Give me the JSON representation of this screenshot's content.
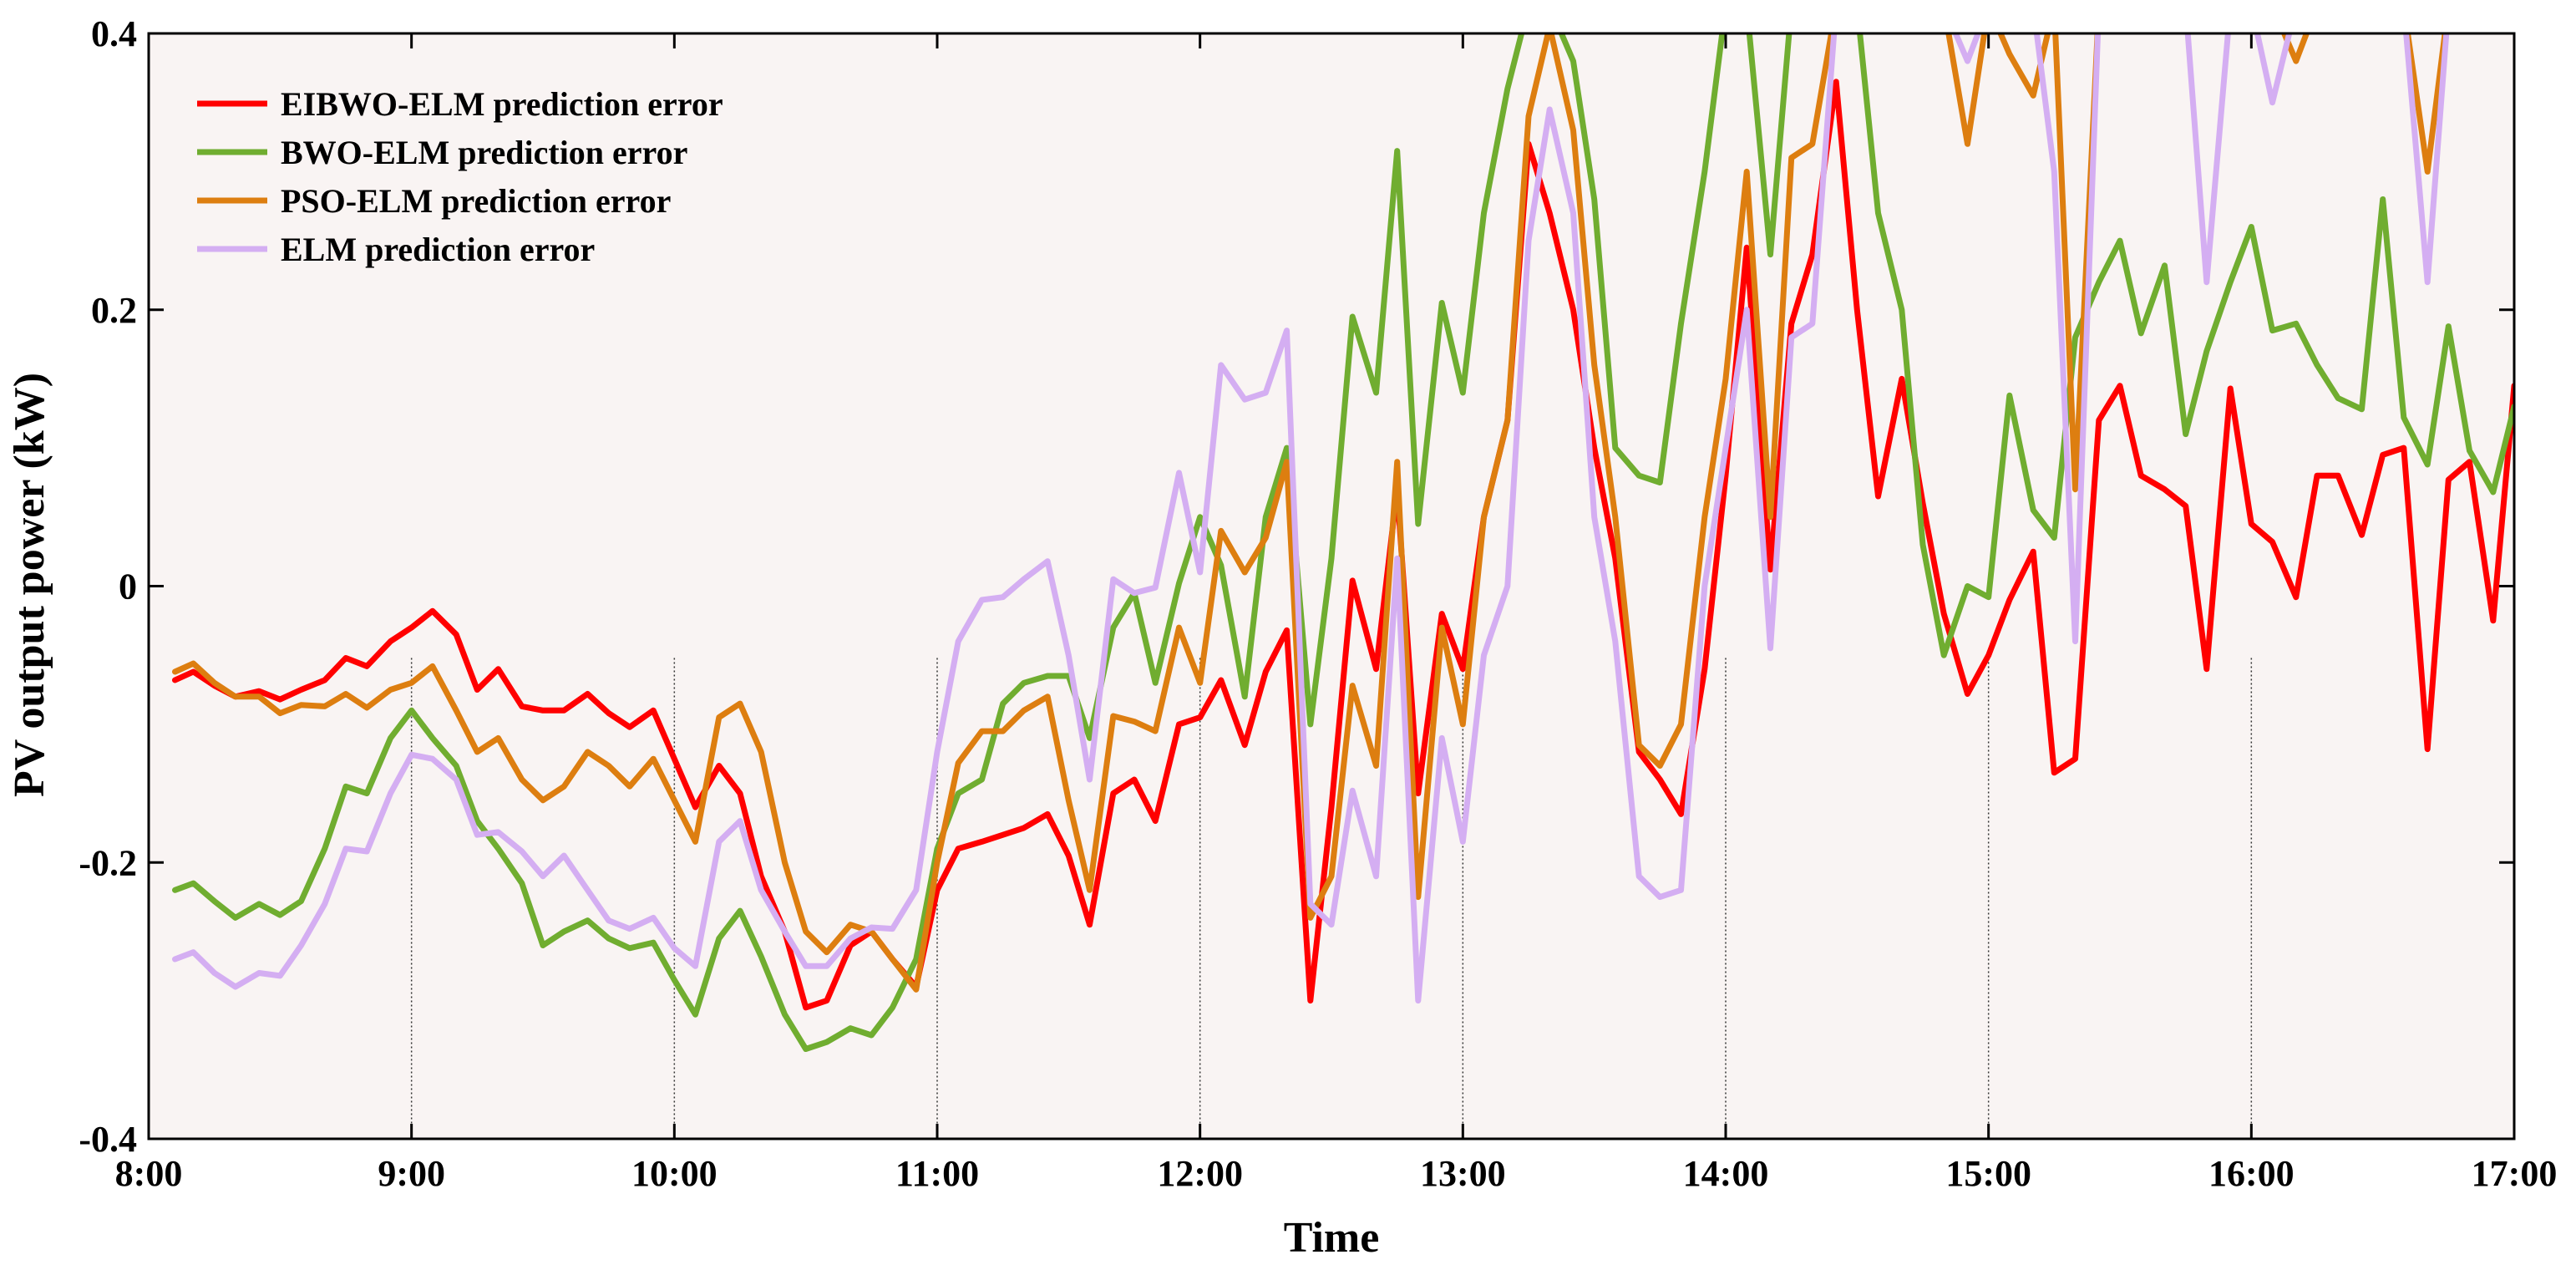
{
  "chart_data": {
    "type": "line",
    "title": "",
    "xlabel": "Time",
    "ylabel": "PV output power (kW)",
    "xlim": [
      8,
      17
    ],
    "ylim": [
      -0.4,
      0.4
    ],
    "grid": "vertical dotted lines at hourly ticks, lower portion of plot",
    "legend": "top-left",
    "plot_background": "#f9f4f3",
    "x_ticks": [
      8,
      9,
      10,
      11,
      12,
      13,
      14,
      15,
      16,
      17
    ],
    "x_tick_labels": [
      "8:00",
      "9:00",
      "10:00",
      "11:00",
      "12:00",
      "13:00",
      "14:00",
      "15:00",
      "16:00",
      "17:00"
    ],
    "y_ticks": [
      -0.4,
      -0.2,
      0,
      0.2,
      0.4
    ],
    "y_tick_labels": [
      "-0.4",
      "-0.2",
      "0",
      "0.2",
      "0.4"
    ],
    "x": [
      8.1,
      8.17,
      8.25,
      8.33,
      8.42,
      8.5,
      8.58,
      8.67,
      8.75,
      8.83,
      8.92,
      9,
      9.08,
      9.17,
      9.25,
      9.33,
      9.42,
      9.5,
      9.58,
      9.67,
      9.75,
      9.83,
      9.92,
      10,
      10.08,
      10.17,
      10.25,
      10.33,
      10.42,
      10.5,
      10.58,
      10.67,
      10.75,
      10.83,
      10.92,
      11,
      11.08,
      11.17,
      11.25,
      11.33,
      11.42,
      11.5,
      11.58,
      11.67,
      11.75,
      11.83,
      11.92,
      12,
      12.08,
      12.17,
      12.25,
      12.33,
      12.42,
      12.5,
      12.58,
      12.67,
      12.75,
      12.83,
      12.92,
      13,
      13.08,
      13.17,
      13.25,
      13.33,
      13.42,
      13.5,
      13.58,
      13.67,
      13.75,
      13.83,
      13.92,
      14,
      14.08,
      14.17,
      14.25,
      14.33,
      14.42,
      14.5,
      14.58,
      14.67,
      14.75,
      14.83,
      14.92,
      15,
      15.08,
      15.17,
      15.25,
      15.33,
      15.42,
      15.5,
      15.58,
      15.67,
      15.75,
      15.83,
      15.92,
      16,
      16.08,
      16.17,
      16.25,
      16.33,
      16.42,
      16.5,
      16.58,
      16.67,
      16.75,
      16.83,
      16.92,
      17
    ],
    "series": [
      {
        "name": "EIBWO-ELM prediction error",
        "color": "#ff0000",
        "values": [
          -0.068,
          -0.062,
          -0.072,
          -0.08,
          -0.076,
          -0.082,
          -0.075,
          -0.068,
          -0.052,
          -0.058,
          -0.04,
          -0.03,
          -0.018,
          -0.035,
          -0.075,
          -0.06,
          -0.087,
          -0.09,
          -0.09,
          -0.078,
          -0.092,
          -0.102,
          -0.09,
          -0.125,
          -0.16,
          -0.13,
          -0.15,
          -0.21,
          -0.25,
          -0.305,
          -0.3,
          -0.26,
          -0.25,
          -0.27,
          -0.29,
          -0.22,
          -0.19,
          -0.185,
          -0.18,
          -0.175,
          -0.165,
          -0.195,
          -0.245,
          -0.15,
          -0.14,
          -0.17,
          -0.1,
          -0.095,
          -0.068,
          -0.115,
          -0.062,
          -0.032,
          -0.3,
          -0.16,
          0.004,
          -0.06,
          0.07,
          -0.15,
          -0.02,
          -0.06,
          0.05,
          0.12,
          0.32,
          0.27,
          0.2,
          0.1,
          0.02,
          -0.12,
          -0.14,
          -0.165,
          -0.06,
          0.08,
          0.245,
          0.012,
          0.19,
          0.24,
          0.365,
          0.2,
          0.065,
          0.15,
          0.06,
          -0.02,
          -0.078,
          -0.05,
          -0.01,
          0.025,
          -0.135,
          -0.125,
          0.12,
          0.145,
          0.08,
          0.07,
          0.058,
          -0.06,
          0.143,
          0.045,
          0.032,
          -0.008,
          0.08,
          0.08,
          0.037,
          0.095,
          0.1,
          -0.118,
          0.077,
          0.09,
          -0.025,
          0.145
        ]
      },
      {
        "name": "BWO-ELM prediction error",
        "color": "#70ad30",
        "values": [
          -0.22,
          -0.215,
          -0.228,
          -0.24,
          -0.23,
          -0.238,
          -0.228,
          -0.19,
          -0.145,
          -0.15,
          -0.11,
          -0.09,
          -0.11,
          -0.13,
          -0.17,
          -0.19,
          -0.215,
          -0.26,
          -0.25,
          -0.242,
          -0.255,
          -0.262,
          -0.258,
          -0.285,
          -0.31,
          -0.255,
          -0.235,
          -0.268,
          -0.31,
          -0.335,
          -0.33,
          -0.32,
          -0.325,
          -0.305,
          -0.27,
          -0.19,
          -0.15,
          -0.14,
          -0.085,
          -0.07,
          -0.065,
          -0.065,
          -0.11,
          -0.03,
          -0.005,
          -0.07,
          0.002,
          0.05,
          0.015,
          -0.08,
          0.05,
          0.1,
          -0.1,
          0.02,
          0.195,
          0.14,
          0.315,
          0.045,
          0.205,
          0.14,
          0.27,
          0.36,
          0.42,
          0.42,
          0.38,
          0.28,
          0.1,
          0.08,
          0.075,
          0.19,
          0.3,
          0.42,
          0.42,
          0.24,
          0.42,
          0.42,
          0.42,
          0.42,
          0.27,
          0.2,
          0.03,
          -0.05,
          0.0,
          -0.008,
          0.138,
          0.055,
          0.035,
          0.18,
          0.22,
          0.25,
          0.183,
          0.232,
          0.11,
          0.17,
          0.22,
          0.26,
          0.185,
          0.19,
          0.16,
          0.136,
          0.128,
          0.28,
          0.122,
          0.088,
          0.188,
          0.098,
          0.068,
          0.13
        ]
      },
      {
        "name": "PSO-ELM prediction error",
        "color": "#dd7e10",
        "values": [
          -0.062,
          -0.056,
          -0.07,
          -0.08,
          -0.08,
          -0.092,
          -0.086,
          -0.087,
          -0.078,
          -0.088,
          -0.075,
          -0.07,
          -0.058,
          -0.09,
          -0.12,
          -0.11,
          -0.14,
          -0.155,
          -0.145,
          -0.12,
          -0.13,
          -0.145,
          -0.125,
          -0.155,
          -0.185,
          -0.095,
          -0.085,
          -0.12,
          -0.2,
          -0.25,
          -0.265,
          -0.245,
          -0.25,
          -0.27,
          -0.292,
          -0.2,
          -0.128,
          -0.105,
          -0.105,
          -0.09,
          -0.08,
          -0.155,
          -0.22,
          -0.094,
          -0.098,
          -0.105,
          -0.03,
          -0.07,
          0.04,
          0.01,
          0.035,
          0.09,
          -0.24,
          -0.21,
          -0.072,
          -0.13,
          0.09,
          -0.225,
          -0.03,
          -0.1,
          0.05,
          0.12,
          0.34,
          0.405,
          0.33,
          0.16,
          0.05,
          -0.115,
          -0.13,
          -0.1,
          0.05,
          0.15,
          0.3,
          0.05,
          0.31,
          0.32,
          0.42,
          0.42,
          0.42,
          0.42,
          0.42,
          0.42,
          0.32,
          0.42,
          0.385,
          0.355,
          0.42,
          0.07,
          0.42,
          0.42,
          0.42,
          0.42,
          0.42,
          0.42,
          0.42,
          0.42,
          0.42,
          0.38,
          0.42,
          0.42,
          0.42,
          0.42,
          0.42,
          0.3,
          0.42,
          0.42,
          0.42,
          0.42
        ]
      },
      {
        "name": "ELM prediction error",
        "color": "#d4aef2",
        "values": [
          -0.27,
          -0.265,
          -0.28,
          -0.29,
          -0.28,
          -0.282,
          -0.26,
          -0.23,
          -0.19,
          -0.192,
          -0.15,
          -0.122,
          -0.125,
          -0.14,
          -0.18,
          -0.178,
          -0.192,
          -0.21,
          -0.195,
          -0.22,
          -0.242,
          -0.248,
          -0.24,
          -0.262,
          -0.275,
          -0.185,
          -0.17,
          -0.22,
          -0.25,
          -0.275,
          -0.275,
          -0.255,
          -0.247,
          -0.248,
          -0.22,
          -0.12,
          -0.04,
          -0.01,
          -0.008,
          0.005,
          0.018,
          -0.05,
          -0.14,
          0.005,
          -0.005,
          -0.001,
          0.082,
          0.01,
          0.16,
          0.135,
          0.14,
          0.185,
          -0.23,
          -0.245,
          -0.148,
          -0.21,
          0.02,
          -0.3,
          -0.11,
          -0.185,
          -0.05,
          0.0,
          0.25,
          0.345,
          0.27,
          0.05,
          -0.04,
          -0.21,
          -0.225,
          -0.22,
          0.0,
          0.1,
          0.2,
          -0.045,
          0.18,
          0.19,
          0.42,
          0.42,
          0.42,
          0.42,
          0.42,
          0.42,
          0.38,
          0.42,
          0.42,
          0.42,
          0.3,
          -0.04,
          0.42,
          0.42,
          0.42,
          0.42,
          0.42,
          0.22,
          0.42,
          0.42,
          0.35,
          0.42,
          0.42,
          0.42,
          0.42,
          0.42,
          0.42,
          0.22,
          0.42,
          0.42,
          0.42,
          0.42
        ]
      }
    ]
  }
}
